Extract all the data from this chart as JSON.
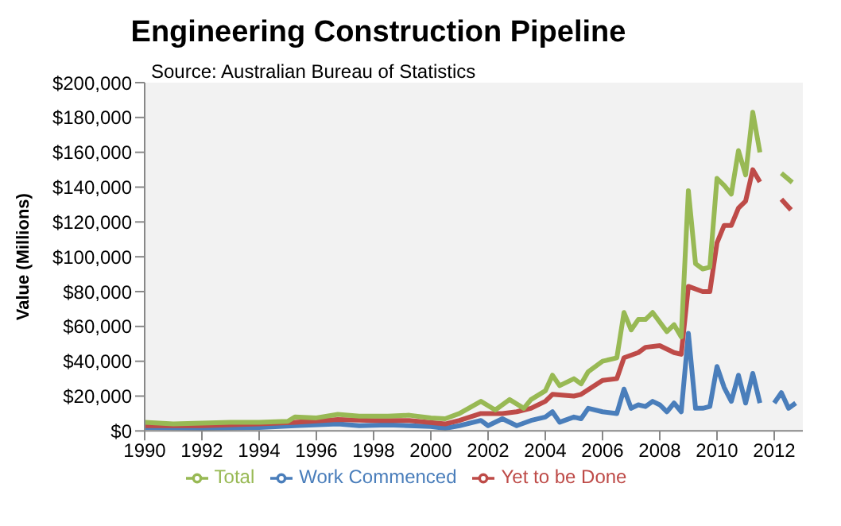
{
  "chart_data": {
    "type": "line",
    "title": "Engineering Construction Pipeline",
    "subtitle": "Source: Australian Bureau of Statistics",
    "ylabel": "Value (Millions)",
    "xlim": [
      1990,
      2013
    ],
    "xticks": [
      1990,
      1992,
      1994,
      1996,
      1998,
      2000,
      2002,
      2004,
      2006,
      2008,
      2010,
      2012
    ],
    "ylim": [
      0,
      200000
    ],
    "yticks": [
      {
        "value": 0,
        "label": "$0"
      },
      {
        "value": 20000,
        "label": "$20,000"
      },
      {
        "value": 40000,
        "label": "$40,000"
      },
      {
        "value": 60000,
        "label": "$60,000"
      },
      {
        "value": 80000,
        "label": "$80,000"
      },
      {
        "value": 100000,
        "label": "$100,000"
      },
      {
        "value": 120000,
        "label": "$120,000"
      },
      {
        "value": 140000,
        "label": "$140,000"
      },
      {
        "value": 160000,
        "label": "$160,000"
      },
      {
        "value": 180000,
        "label": "$180,000"
      },
      {
        "value": 200000,
        "label": "$200,000"
      }
    ],
    "grid": false,
    "legend": "bottom",
    "marker": "none",
    "line_style": "solid",
    "series": [
      {
        "name": "Work Commenced",
        "color": "#4a7ebb",
        "x": [
          1990,
          1992,
          1994,
          1995.25,
          1996.75,
          1997.5,
          1998.5,
          2000,
          2000.5,
          2001,
          2001.75,
          2002,
          2002.5,
          2003,
          2003.5,
          2004,
          2004.25,
          2004.5,
          2005,
          2005.25,
          2005.5,
          2006,
          2006.5,
          2006.75,
          2007,
          2007.25,
          2007.5,
          2007.75,
          2008,
          2008.25,
          2008.5,
          2008.75,
          2009,
          2009.25,
          2009.5,
          2009.75,
          2010,
          2010.25,
          2010.5,
          2010.75,
          2011,
          2011.25,
          2011.5,
          2011.75,
          2012,
          2012.25,
          2012.5,
          2012.75
        ],
        "values": [
          2000,
          1500,
          2000,
          3000,
          4000,
          3000,
          3500,
          2500,
          1500,
          3000,
          6000,
          3000,
          7000,
          3000,
          6000,
          8000,
          11000,
          5000,
          8000,
          7000,
          13000,
          11000,
          10000,
          24000,
          13000,
          15000,
          14000,
          17000,
          15000,
          11000,
          16000,
          11000,
          56000,
          13000,
          13000,
          14000,
          37000,
          25000,
          17000,
          32000,
          16000,
          33000,
          16000,
          null,
          16000,
          22000,
          13000,
          16000
        ]
      },
      {
        "name": "Yet to be Done",
        "color": "#be4b48",
        "x": [
          1990,
          1992,
          1994,
          1995.25,
          1996.75,
          1998,
          1999.25,
          2000.5,
          2001,
          2001.75,
          2002.5,
          2003,
          2003.5,
          2004,
          2004.25,
          2005,
          2005.25,
          2006,
          2006.5,
          2006.75,
          2007.25,
          2007.5,
          2008,
          2008.5,
          2008.75,
          2009,
          2009.5,
          2009.75,
          2010,
          2010.25,
          2010.5,
          2010.75,
          2011,
          2011.25,
          2011.5
        ],
        "values": [
          3000,
          3000,
          4000,
          5000,
          6500,
          6000,
          6000,
          4000,
          6000,
          10000,
          10000,
          11000,
          13000,
          17000,
          21000,
          20000,
          21000,
          29000,
          30000,
          42000,
          45000,
          48000,
          49000,
          45000,
          44000,
          83000,
          80000,
          80000,
          108000,
          118000,
          118000,
          128000,
          132000,
          150000,
          143000
        ]
      },
      {
        "name": "Total",
        "color": "#98b954",
        "x": [
          1990,
          1991,
          1992,
          1993,
          1994,
          1995,
          1995.25,
          1996,
          1996.75,
          1997.5,
          1998.5,
          1999.25,
          2000,
          2000.5,
          2001,
          2001.75,
          2002.25,
          2002.75,
          2003.25,
          2003.5,
          2004,
          2004.25,
          2004.5,
          2005,
          2005.25,
          2005.5,
          2006,
          2006.5,
          2006.75,
          2007,
          2007.25,
          2007.5,
          2007.75,
          2008.25,
          2008.5,
          2008.75,
          2009,
          2009.25,
          2009.5,
          2009.75,
          2010,
          2010.25,
          2010.5,
          2010.75,
          2011,
          2011.25,
          2011.5
        ],
        "values": [
          5000,
          4000,
          4500,
          5000,
          5000,
          5500,
          8000,
          7500,
          9500,
          8500,
          8500,
          9000,
          7500,
          7000,
          10000,
          17000,
          12000,
          18000,
          13000,
          18000,
          23000,
          32000,
          26000,
          30000,
          27000,
          34000,
          40000,
          42000,
          68000,
          58000,
          64000,
          64000,
          68000,
          57000,
          61000,
          54000,
          138000,
          96000,
          93000,
          94000,
          145000,
          141000,
          136000,
          161000,
          147000,
          183000,
          160000
        ]
      },
      {
        "color": "#be4b48",
        "line_style": "dashed",
        "x": [
          2012.25,
          2012.75
        ],
        "values": [
          133000,
          124000
        ]
      },
      {
        "color": "#98b954",
        "line_style": "dashed",
        "x": [
          2012.25,
          2012.75
        ],
        "values": [
          148000,
          141000
        ]
      }
    ]
  }
}
